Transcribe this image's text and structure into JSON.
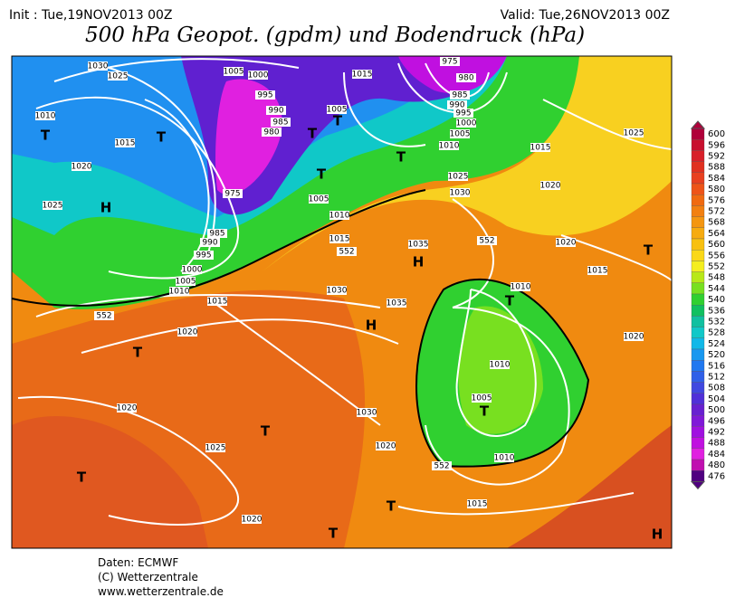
{
  "header": {
    "init": "Init : Tue,19NOV2013 00Z",
    "valid": "Valid: Tue,26NOV2013 00Z",
    "title": "500 hPa Geopot. (gpdm) und Bodendruck (hPa)"
  },
  "footer": {
    "lines": [
      "Daten: ECMWF",
      "(C) Wetterzentrale",
      "www.wetterzentrale.de"
    ]
  },
  "colorbar": {
    "levels": [
      600,
      596,
      592,
      588,
      584,
      580,
      576,
      572,
      568,
      564,
      560,
      556,
      552,
      548,
      544,
      540,
      536,
      532,
      528,
      524,
      520,
      516,
      512,
      508,
      504,
      500,
      496,
      492,
      488,
      484,
      480,
      476
    ],
    "colors": [
      "#b0003a",
      "#c8102e",
      "#d8202a",
      "#e03020",
      "#e84020",
      "#ee5418",
      "#f06a10",
      "#f28010",
      "#f49610",
      "#f6ab10",
      "#f8c010",
      "#fad818",
      "#f4ee20",
      "#b8e818",
      "#78e020",
      "#30d030",
      "#10c060",
      "#10c0a0",
      "#10c8c8",
      "#10b8e8",
      "#1898f0",
      "#2078f0",
      "#3060e8",
      "#4048e0",
      "#5030d8",
      "#6820d0",
      "#8018d8",
      "#a010e0",
      "#c010e0",
      "#e020e0",
      "#c010b0",
      "#500080"
    ]
  },
  "map": {
    "isobar_labels": [
      "1030",
      "1025",
      "1020",
      "1025",
      "1015",
      "1010",
      "1005",
      "1000",
      "995",
      "990",
      "985",
      "980",
      "975",
      "985",
      "990",
      "995",
      "1000",
      "1005",
      "1010",
      "1015",
      "1020",
      "1025",
      "1020",
      "1020",
      "1030",
      "1015",
      "1005",
      "1005",
      "1010",
      "1015",
      "1030",
      "1035",
      "1035",
      "975",
      "980",
      "985",
      "990",
      "995",
      "1000",
      "1005",
      "1010",
      "1015",
      "1020",
      "1025",
      "1030",
      "1025",
      "1020",
      "1015",
      "1010",
      "1010",
      "1005",
      "1020",
      "1015",
      "1010",
      "1020",
      "552",
      "552",
      "552",
      "552"
    ],
    "pressure_centers": [
      "T",
      "T",
      "H",
      "T",
      "T",
      "T",
      "T",
      "H",
      "H",
      "T",
      "T",
      "T",
      "T",
      "T",
      "T",
      "T",
      "T",
      "H"
    ]
  }
}
